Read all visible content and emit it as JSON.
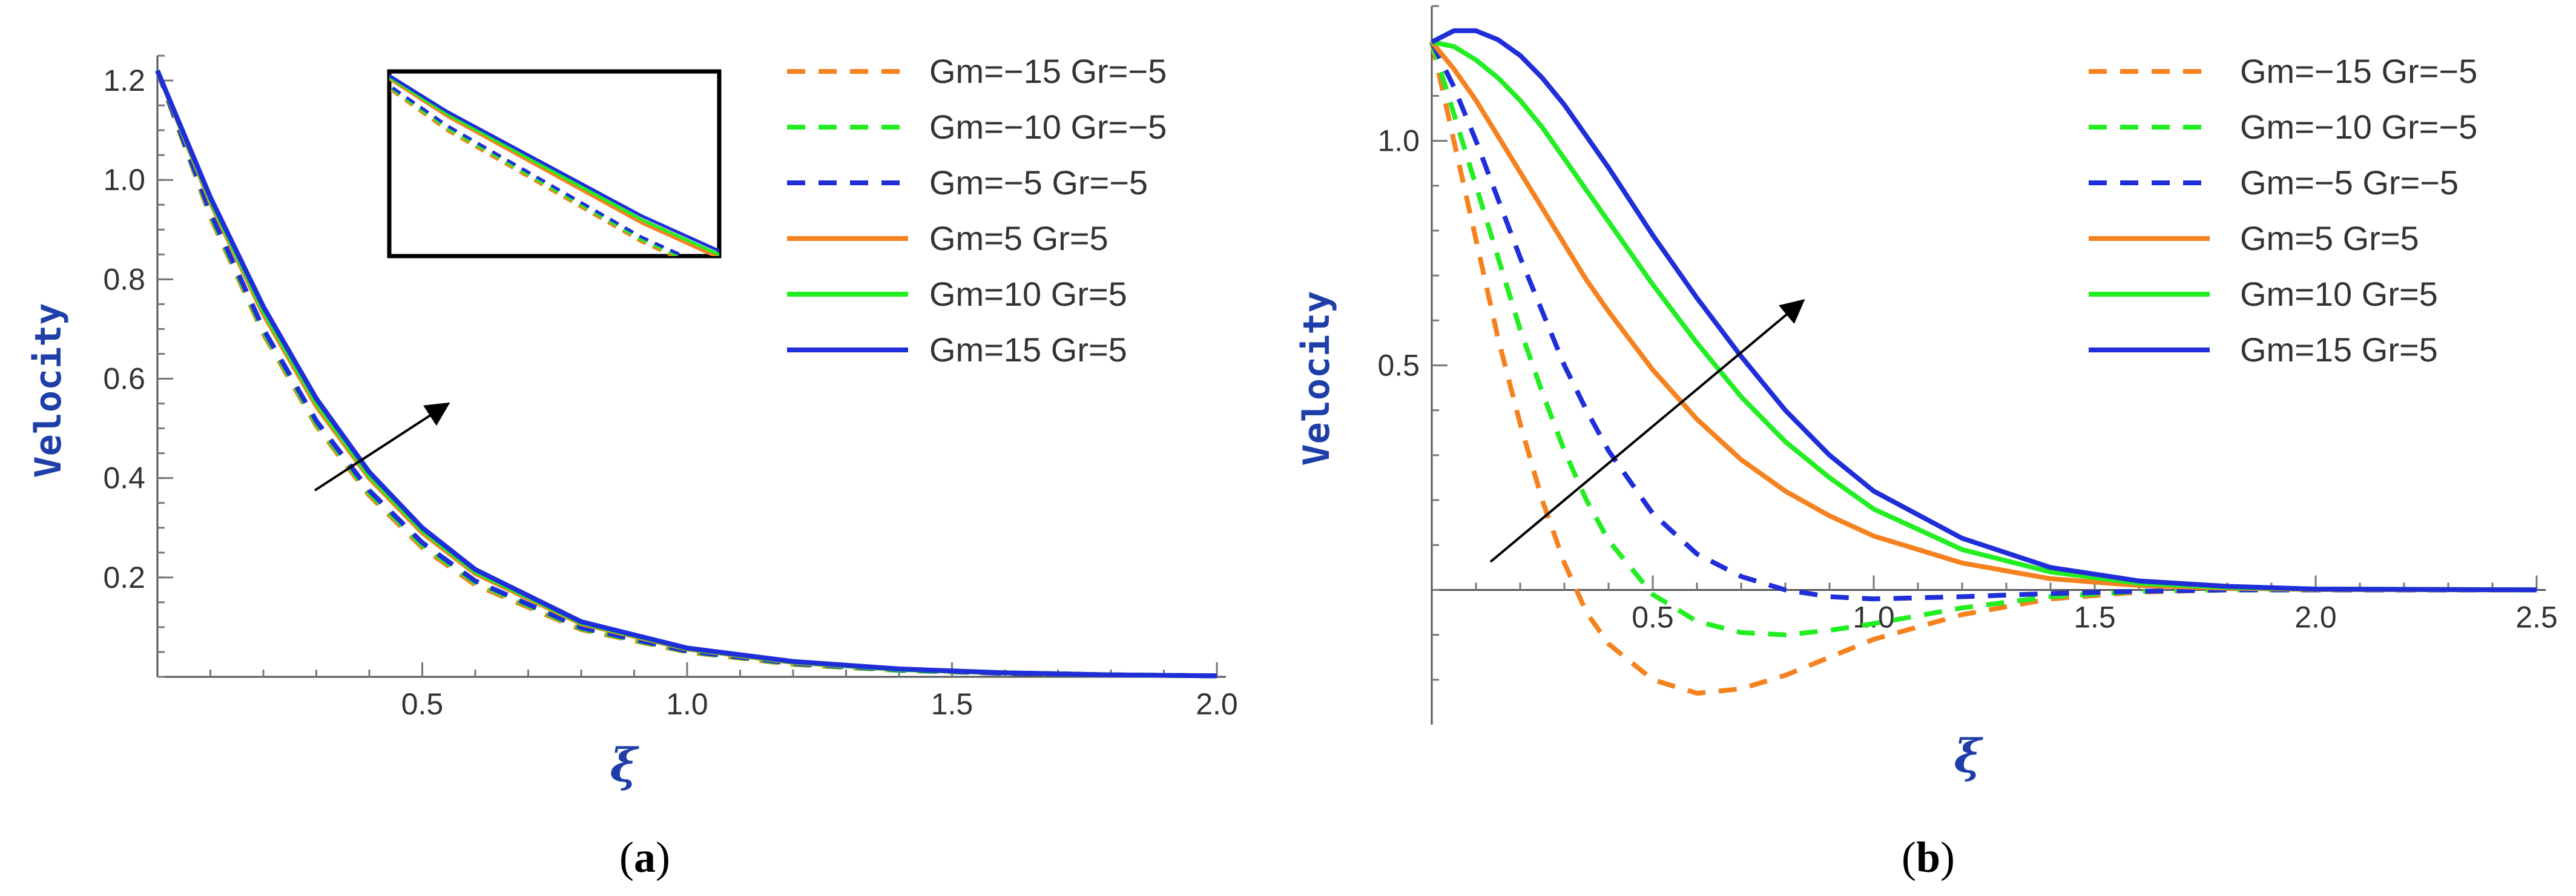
{
  "chart_data": [
    {
      "type": "line",
      "panel": "a",
      "caption_letter": "a",
      "title": "",
      "xlabel": "ξ",
      "ylabel": "Velocity",
      "xlim": [
        0,
        2.0
      ],
      "ylim": [
        0,
        1.25
      ],
      "x_ticks": [
        0.5,
        1.0,
        1.5,
        2.0
      ],
      "x_tick_labels": [
        "0.5",
        "1.0",
        "1.5",
        "2.0"
      ],
      "y_ticks": [
        0.2,
        0.4,
        0.6,
        0.8,
        1.0,
        1.2
      ],
      "y_tick_labels": [
        "0.2",
        "0.4",
        "0.6",
        "0.8",
        "1.0",
        "1.2"
      ],
      "x_minor_step": 0.1,
      "y_minor_step": 0.05,
      "legend_position": "top-right",
      "annotation": "arrow indicating increasing Gm and Gr",
      "has_inset": true,
      "series": [
        {
          "name": "Gm=−15 Gr=−5",
          "color": "#f5821f",
          "dash": true,
          "x": [
            0,
            0.1,
            0.2,
            0.3,
            0.4,
            0.5,
            0.6,
            0.8,
            1.0,
            1.2,
            1.4,
            1.6,
            1.8,
            2.0
          ],
          "values": [
            1.22,
            0.925,
            0.69,
            0.505,
            0.365,
            0.26,
            0.185,
            0.095,
            0.05,
            0.025,
            0.013,
            0.007,
            0.004,
            0.002
          ]
        },
        {
          "name": "Gm=−10 Gr=−5",
          "color": "#22ee22",
          "dash": true,
          "x": [
            0,
            0.1,
            0.2,
            0.3,
            0.4,
            0.5,
            0.6,
            0.8,
            1.0,
            1.2,
            1.4,
            1.6,
            1.8,
            2.0
          ],
          "values": [
            1.22,
            0.93,
            0.695,
            0.51,
            0.37,
            0.265,
            0.19,
            0.097,
            0.051,
            0.026,
            0.013,
            0.007,
            0.004,
            0.002
          ]
        },
        {
          "name": "Gm=−5 Gr=−5",
          "color": "#1f2ed8",
          "dash": true,
          "x": [
            0,
            0.1,
            0.2,
            0.3,
            0.4,
            0.5,
            0.6,
            0.8,
            1.0,
            1.2,
            1.4,
            1.6,
            1.8,
            2.0
          ],
          "values": [
            1.22,
            0.935,
            0.7,
            0.515,
            0.375,
            0.27,
            0.193,
            0.099,
            0.052,
            0.027,
            0.014,
            0.007,
            0.004,
            0.002
          ]
        },
        {
          "name": "Gm=5 Gr=5",
          "color": "#f5821f",
          "dash": false,
          "x": [
            0,
            0.1,
            0.2,
            0.3,
            0.4,
            0.5,
            0.6,
            0.8,
            1.0,
            1.2,
            1.4,
            1.6,
            1.8,
            2.0
          ],
          "values": [
            1.22,
            0.955,
            0.73,
            0.545,
            0.4,
            0.29,
            0.208,
            0.107,
            0.056,
            0.029,
            0.015,
            0.008,
            0.004,
            0.002
          ]
        },
        {
          "name": "Gm=10 Gr=5",
          "color": "#22ee22",
          "dash": false,
          "x": [
            0,
            0.1,
            0.2,
            0.3,
            0.4,
            0.5,
            0.6,
            0.8,
            1.0,
            1.2,
            1.4,
            1.6,
            1.8,
            2.0
          ],
          "values": [
            1.22,
            0.96,
            0.737,
            0.552,
            0.405,
            0.295,
            0.212,
            0.109,
            0.057,
            0.03,
            0.015,
            0.008,
            0.004,
            0.002
          ]
        },
        {
          "name": "Gm=15 Gr=5",
          "color": "#1f2ed8",
          "dash": false,
          "x": [
            0,
            0.1,
            0.2,
            0.3,
            0.4,
            0.5,
            0.6,
            0.8,
            1.0,
            1.2,
            1.4,
            1.6,
            1.8,
            2.0
          ],
          "values": [
            1.22,
            0.965,
            0.745,
            0.56,
            0.412,
            0.3,
            0.216,
            0.111,
            0.058,
            0.031,
            0.016,
            0.008,
            0.004,
            0.002
          ]
        }
      ]
    },
    {
      "type": "line",
      "panel": "b",
      "caption_letter": "b",
      "title": "",
      "xlabel": "ξ",
      "ylabel": "Velocity",
      "xlim": [
        0,
        2.5
      ],
      "ylim": [
        -0.3,
        1.3
      ],
      "x_ticks": [
        0.5,
        1.0,
        1.5,
        2.0,
        2.5
      ],
      "x_tick_labels": [
        "0.5",
        "1.0",
        "1.5",
        "2.0",
        "2.5"
      ],
      "y_ticks": [
        0.5,
        1.0
      ],
      "y_tick_labels": [
        "0.5",
        "1.0"
      ],
      "x_minor_step": 0.1,
      "y_minor_step": 0.1,
      "legend_position": "top-right",
      "annotation": "arrow indicating increasing Gm and Gr",
      "series": [
        {
          "name": "Gm=−15 Gr=−5",
          "color": "#f5821f",
          "dash": true,
          "x": [
            0,
            0.05,
            0.1,
            0.15,
            0.2,
            0.25,
            0.3,
            0.35,
            0.4,
            0.5,
            0.6,
            0.7,
            0.8,
            0.9,
            1.0,
            1.2,
            1.4,
            1.6,
            1.8,
            2.0,
            2.5
          ],
          "values": [
            1.22,
            1.0,
            0.78,
            0.56,
            0.37,
            0.2,
            0.06,
            -0.05,
            -0.12,
            -0.2,
            -0.23,
            -0.22,
            -0.19,
            -0.15,
            -0.11,
            -0.055,
            -0.02,
            -0.005,
            0.0,
            0.0,
            0.0
          ]
        },
        {
          "name": "Gm=−10 Gr=−5",
          "color": "#22ee22",
          "dash": true,
          "x": [
            0,
            0.05,
            0.1,
            0.15,
            0.2,
            0.25,
            0.3,
            0.35,
            0.4,
            0.5,
            0.6,
            0.7,
            0.8,
            0.9,
            1.0,
            1.2,
            1.4,
            1.6,
            1.8,
            2.0,
            2.5
          ],
          "values": [
            1.22,
            1.06,
            0.9,
            0.74,
            0.58,
            0.44,
            0.31,
            0.2,
            0.11,
            -0.01,
            -0.07,
            -0.095,
            -0.1,
            -0.09,
            -0.075,
            -0.04,
            -0.015,
            -0.003,
            0.0,
            0.0,
            0.0
          ]
        },
        {
          "name": "Gm=−5 Gr=−5",
          "color": "#1f2ed8",
          "dash": true,
          "x": [
            0,
            0.05,
            0.1,
            0.15,
            0.2,
            0.25,
            0.3,
            0.35,
            0.4,
            0.5,
            0.6,
            0.7,
            0.8,
            0.9,
            1.0,
            1.2,
            1.4,
            1.6,
            1.8,
            2.0,
            2.5
          ],
          "values": [
            1.22,
            1.12,
            1.0,
            0.87,
            0.74,
            0.62,
            0.5,
            0.4,
            0.31,
            0.17,
            0.08,
            0.03,
            0.0,
            -0.015,
            -0.02,
            -0.015,
            -0.008,
            -0.003,
            0.0,
            0.0,
            0.0
          ]
        },
        {
          "name": "Gm=5 Gr=5",
          "color": "#f5821f",
          "dash": false,
          "x": [
            0,
            0.05,
            0.1,
            0.15,
            0.2,
            0.25,
            0.3,
            0.35,
            0.4,
            0.5,
            0.6,
            0.7,
            0.8,
            0.9,
            1.0,
            1.2,
            1.4,
            1.6,
            1.8,
            2.0,
            2.5
          ],
          "values": [
            1.22,
            1.16,
            1.09,
            1.01,
            0.93,
            0.85,
            0.77,
            0.69,
            0.62,
            0.49,
            0.38,
            0.29,
            0.22,
            0.165,
            0.12,
            0.06,
            0.025,
            0.01,
            0.004,
            0.001,
            0.0
          ]
        },
        {
          "name": "Gm=10 Gr=5",
          "color": "#22ee22",
          "dash": false,
          "x": [
            0,
            0.05,
            0.1,
            0.15,
            0.2,
            0.25,
            0.3,
            0.35,
            0.4,
            0.5,
            0.6,
            0.7,
            0.8,
            0.9,
            1.0,
            1.2,
            1.4,
            1.6,
            1.8,
            2.0,
            2.5
          ],
          "values": [
            1.22,
            1.21,
            1.18,
            1.14,
            1.09,
            1.03,
            0.96,
            0.89,
            0.82,
            0.68,
            0.55,
            0.43,
            0.33,
            0.25,
            0.18,
            0.09,
            0.04,
            0.015,
            0.006,
            0.002,
            0.0
          ]
        },
        {
          "name": "Gm=15 Gr=5",
          "color": "#1f2ed8",
          "dash": false,
          "x": [
            0,
            0.05,
            0.1,
            0.15,
            0.2,
            0.25,
            0.3,
            0.35,
            0.4,
            0.5,
            0.6,
            0.7,
            0.8,
            0.9,
            1.0,
            1.2,
            1.4,
            1.6,
            1.8,
            2.0,
            2.5
          ],
          "values": [
            1.22,
            1.245,
            1.245,
            1.225,
            1.19,
            1.14,
            1.08,
            1.01,
            0.94,
            0.79,
            0.65,
            0.52,
            0.4,
            0.3,
            0.22,
            0.115,
            0.05,
            0.02,
            0.008,
            0.002,
            0.0
          ]
        }
      ]
    }
  ]
}
